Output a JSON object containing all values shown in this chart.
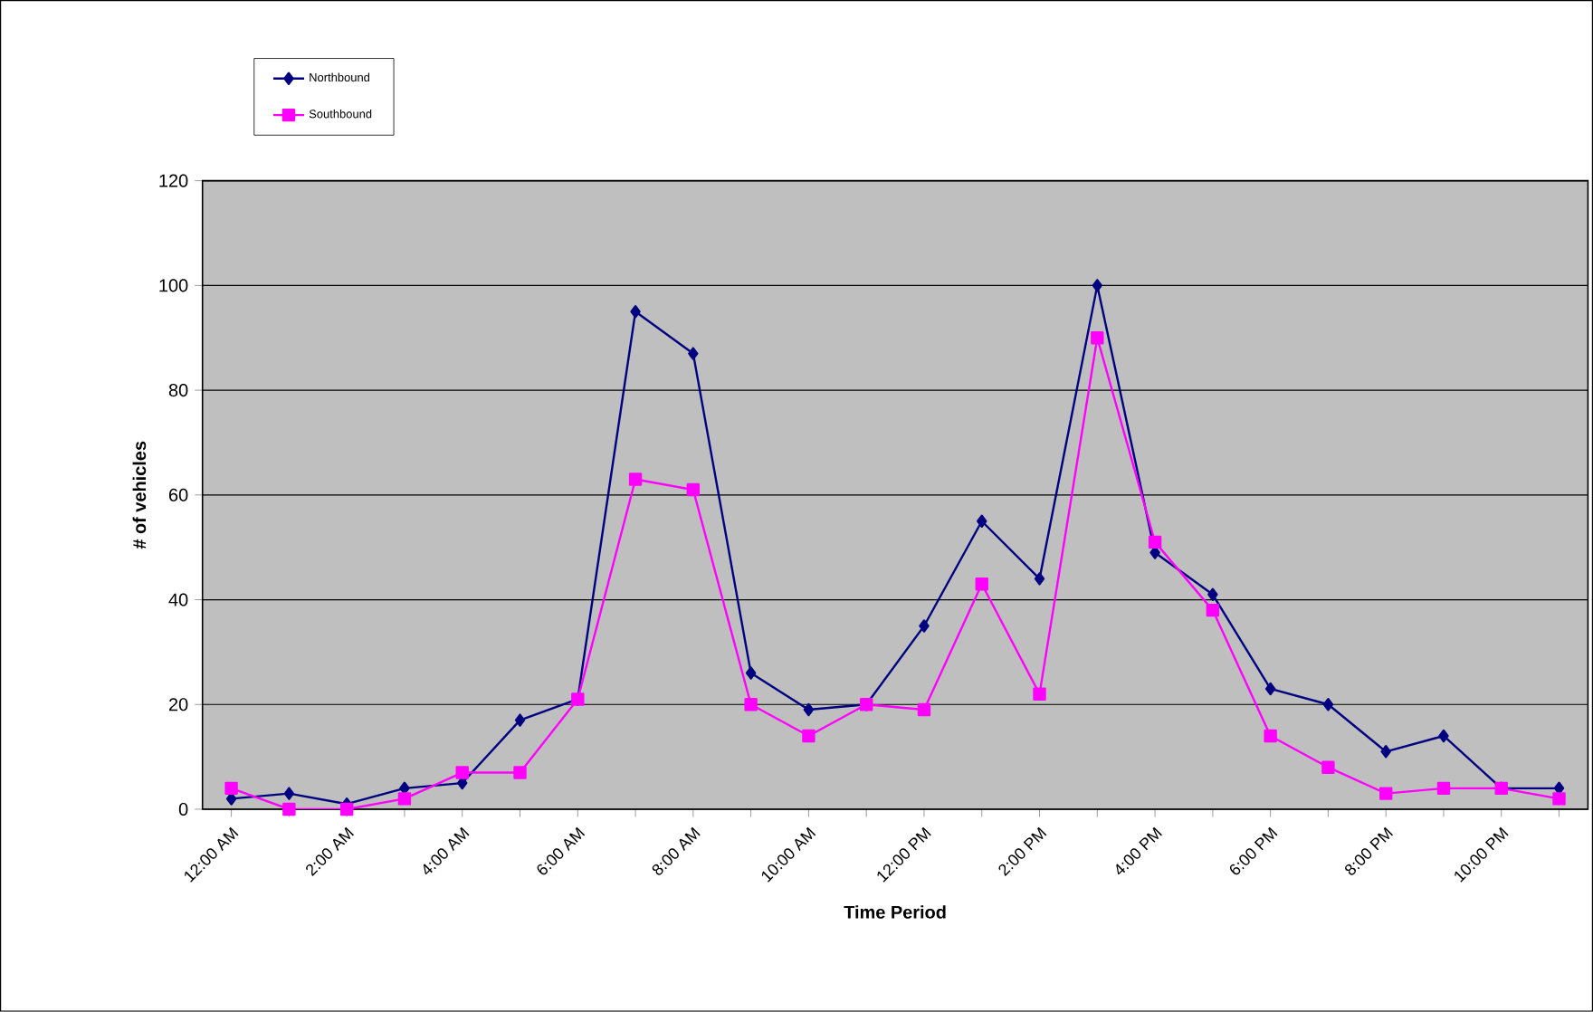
{
  "chart_data": {
    "type": "line",
    "xlabel": "Time Period",
    "ylabel": "# of vehicles",
    "categories": [
      "12:00 AM",
      null,
      "2:00 AM",
      null,
      "4:00 AM",
      null,
      "6:00 AM",
      null,
      "8:00 AM",
      null,
      "10:00 AM",
      null,
      "12:00 PM",
      null,
      "2:00 PM",
      null,
      "4:00 PM",
      null,
      "6:00 PM",
      null,
      "8:00 PM",
      null,
      "10:00 PM",
      null
    ],
    "series": [
      {
        "name": "Northbound",
        "color": "#000080",
        "marker": "diamond",
        "values": [
          2,
          3,
          1,
          4,
          5,
          17,
          21,
          95,
          87,
          26,
          19,
          20,
          35,
          55,
          44,
          100,
          49,
          41,
          23,
          20,
          11,
          14,
          4,
          4
        ]
      },
      {
        "name": "Southbound",
        "color": "#ff00ff",
        "marker": "square",
        "values": [
          4,
          0,
          0,
          2,
          7,
          7,
          21,
          63,
          61,
          20,
          14,
          20,
          19,
          43,
          22,
          90,
          51,
          38,
          14,
          8,
          3,
          4,
          4,
          2
        ]
      }
    ],
    "ylim": [
      0,
      120
    ],
    "yticks": [
      0,
      20,
      40,
      60,
      80,
      100,
      120
    ],
    "grid": "y",
    "legend": "top left",
    "line_style": "solid"
  }
}
